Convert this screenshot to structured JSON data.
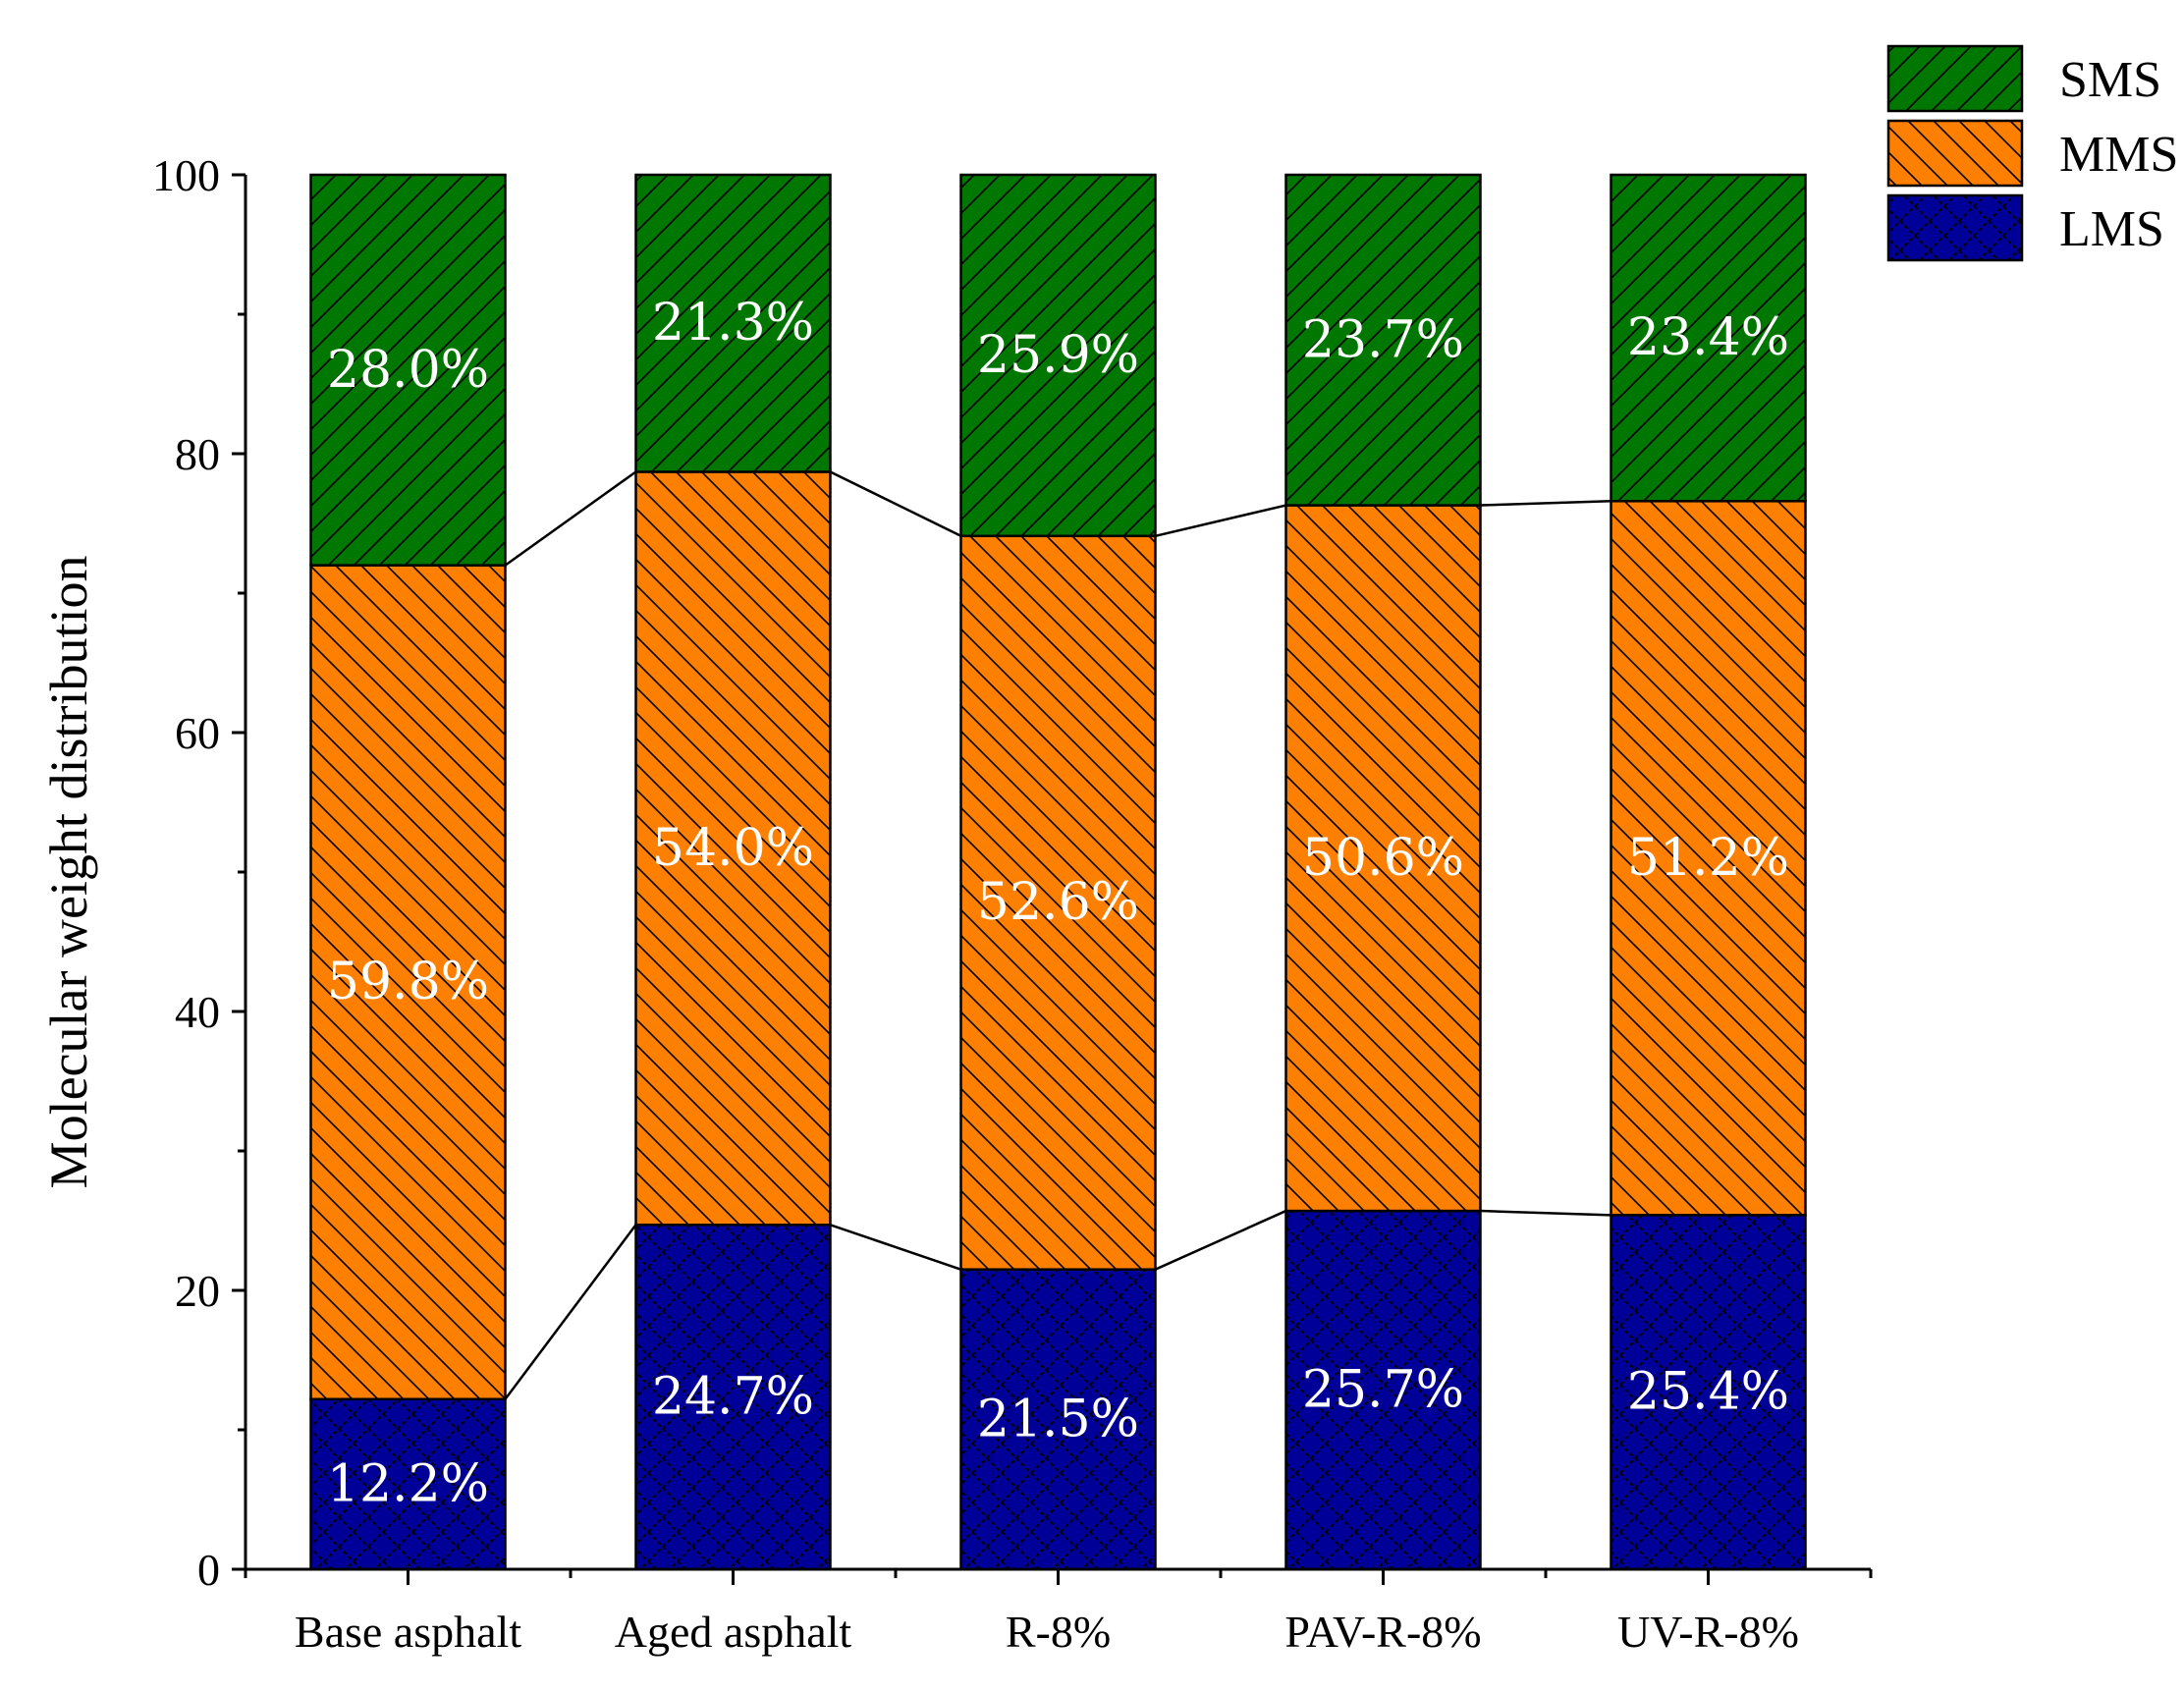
{
  "chart_data": {
    "type": "bar",
    "stacked": true,
    "title": "",
    "xlabel": "",
    "ylabel": "Molecular weight distribution",
    "ylim": [
      0,
      100
    ],
    "yticks": [
      0,
      20,
      40,
      60,
      80,
      100
    ],
    "grid": false,
    "legend_position": "top-right",
    "categories": [
      "Base asphalt",
      "Aged asphalt",
      "R-8%",
      "PAV-R-8%",
      "UV-R-8%"
    ],
    "series": [
      {
        "name": "LMS",
        "color": "#000099",
        "values": [
          12.2,
          24.7,
          21.5,
          25.7,
          25.4
        ],
        "labels": [
          "12.2%",
          "24.7%",
          "21.5%",
          "25.7%",
          "25.4%"
        ]
      },
      {
        "name": "MMS",
        "color": "#ff7f00",
        "values": [
          59.8,
          54.0,
          52.6,
          50.6,
          51.2
        ],
        "labels": [
          "59.8%",
          "54.0%",
          "52.6%",
          "50.6%",
          "51.2%"
        ]
      },
      {
        "name": "SMS",
        "color": "#007700",
        "values": [
          28.0,
          21.3,
          25.9,
          23.7,
          23.4
        ],
        "labels": [
          "28.0%",
          "21.3%",
          "25.9%",
          "23.7%",
          "23.4%"
        ]
      }
    ],
    "legend_order": [
      "SMS",
      "MMS",
      "LMS"
    ]
  }
}
